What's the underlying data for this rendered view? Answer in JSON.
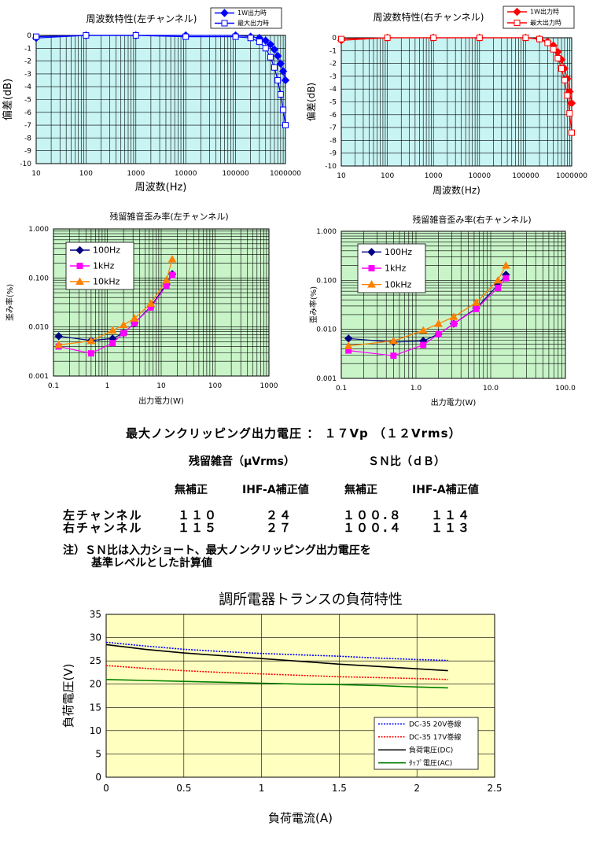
{
  "chart_data": [
    {
      "id": "freq_left",
      "type": "line",
      "title": "周波数特性(左チャンネル)",
      "xlabel": "周波数(Hz)",
      "ylabel": "偏差(dB)",
      "xscale": "log",
      "xlim": [
        10,
        1000000
      ],
      "ylim": [
        -10,
        0
      ],
      "xticks": [
        "10",
        "100",
        "1000",
        "10000",
        "100000",
        "1000000"
      ],
      "yticks": [
        "0",
        "-1",
        "-2",
        "-3",
        "-4",
        "-5",
        "-6",
        "-7",
        "-8",
        "-9",
        "-10"
      ],
      "grid": true,
      "legend": "top-right",
      "series": [
        {
          "name": "1W出力時",
          "color": "#0000ff",
          "marker": "diamond",
          "x": [
            10,
            100,
            1000,
            10000,
            100000,
            200000,
            300000,
            400000,
            500000,
            600000,
            700000,
            800000,
            900000,
            1000000
          ],
          "y": [
            -0.2,
            0,
            0,
            0,
            0,
            -0.1,
            -0.2,
            -0.4,
            -0.7,
            -1.1,
            -1.6,
            -2.2,
            -2.8,
            -3.5
          ]
        },
        {
          "name": "最大出力時",
          "color": "#0000ff",
          "marker": "square-open",
          "x": [
            10,
            100,
            1000,
            10000,
            100000,
            200000,
            300000,
            400000,
            500000,
            600000,
            700000,
            800000,
            900000,
            1000000
          ],
          "y": [
            -0.1,
            0,
            0,
            -0.1,
            -0.1,
            -0.2,
            -0.5,
            -1.0,
            -1.7,
            -2.5,
            -3.5,
            -4.6,
            -5.8,
            -7.0
          ]
        }
      ]
    },
    {
      "id": "freq_right",
      "type": "line",
      "title": "周波数特性(右チャンネル)",
      "xlabel": "周波数(Hz)",
      "ylabel": "偏差(dB)",
      "xscale": "log",
      "xlim": [
        10,
        1000000
      ],
      "ylim": [
        -10,
        0
      ],
      "xticks": [
        "10",
        "100",
        "1000",
        "10000",
        "100000",
        "1000000"
      ],
      "yticks": [
        "0",
        "-1",
        "-2",
        "-3",
        "-4",
        "-5",
        "-6",
        "-7",
        "-8",
        "-9",
        "-10"
      ],
      "grid": true,
      "legend": "top-right",
      "series": [
        {
          "name": "1W出力時",
          "color": "#ff0000",
          "marker": "diamond",
          "x": [
            10,
            100,
            1000,
            10000,
            100000,
            200000,
            300000,
            400000,
            500000,
            600000,
            700000,
            800000,
            900000,
            1000000
          ],
          "y": [
            -0.2,
            0,
            0,
            0,
            0,
            -0.1,
            -0.3,
            -0.6,
            -1.1,
            -1.7,
            -2.4,
            -3.2,
            -4.2,
            -5.1
          ]
        },
        {
          "name": "最大出力時",
          "color": "#ff0000",
          "marker": "square-open",
          "x": [
            10,
            100,
            1000,
            10000,
            100000,
            200000,
            300000,
            400000,
            500000,
            600000,
            700000,
            800000,
            900000,
            1000000
          ],
          "y": [
            -0.1,
            0,
            0,
            0,
            0,
            -0.1,
            -0.4,
            -0.9,
            -1.6,
            -2.4,
            -3.3,
            -4.5,
            -5.9,
            -7.4
          ]
        }
      ]
    },
    {
      "id": "thd_left",
      "type": "line",
      "title": "残留雑音歪み率(左チャンネル)",
      "xlabel": "出力電力(W)",
      "ylabel": "歪み率(%)",
      "xscale": "log",
      "yscale": "log",
      "xlim": [
        0.1,
        1000
      ],
      "ylim": [
        0.001,
        1
      ],
      "xticks": [
        "0.1",
        "1",
        "10",
        "100",
        "1000"
      ],
      "yticks": [
        "1.000",
        "0.100",
        "0.010",
        "0.001"
      ],
      "grid": true,
      "legend": "top-left",
      "series": [
        {
          "name": "100Hz",
          "color": "#000080",
          "marker": "diamond",
          "x": [
            0.125,
            0.5,
            1.25,
            2.0,
            3.2,
            6.4,
            12.5,
            16
          ],
          "y": [
            0.0065,
            0.0053,
            0.0058,
            0.0075,
            0.012,
            0.026,
            0.075,
            0.12
          ]
        },
        {
          "name": "1kHz",
          "color": "#ff00ff",
          "marker": "square",
          "x": [
            0.125,
            0.5,
            1.25,
            2.0,
            3.2,
            6.4,
            12.5,
            16
          ],
          "y": [
            0.004,
            0.0029,
            0.0047,
            0.0075,
            0.012,
            0.025,
            0.07,
            0.115
          ]
        },
        {
          "name": "10kHz",
          "color": "#ff8000",
          "marker": "triangle",
          "x": [
            0.125,
            0.5,
            1.25,
            2.0,
            3.2,
            6.4,
            12.5,
            16
          ],
          "y": [
            0.0043,
            0.0052,
            0.0085,
            0.011,
            0.015,
            0.03,
            0.09,
            0.24
          ]
        }
      ]
    },
    {
      "id": "thd_right",
      "type": "line",
      "title": "残留雑音歪み率(右チャンネル)",
      "xlabel": "出力電力(W)",
      "ylabel": "歪み率(%)",
      "xscale": "log",
      "yscale": "log",
      "xlim": [
        0.1,
        100
      ],
      "ylim": [
        0.001,
        1
      ],
      "xticks": [
        "0.1",
        "1.0",
        "10.0",
        "100.0"
      ],
      "yticks": [
        "1.000",
        "0.100",
        "0.010",
        "0.001"
      ],
      "grid": true,
      "legend": "top-left",
      "series": [
        {
          "name": "100Hz",
          "color": "#000080",
          "marker": "diamond",
          "x": [
            0.125,
            0.5,
            1.25,
            2.0,
            3.2,
            6.4,
            12.5,
            16
          ],
          "y": [
            0.0065,
            0.0055,
            0.0058,
            0.008,
            0.013,
            0.027,
            0.08,
            0.13
          ]
        },
        {
          "name": "1kHz",
          "color": "#ff00ff",
          "marker": "square",
          "x": [
            0.125,
            0.5,
            1.25,
            2.0,
            3.2,
            6.4,
            12.5,
            16
          ],
          "y": [
            0.0037,
            0.0029,
            0.0048,
            0.008,
            0.013,
            0.026,
            0.07,
            0.11
          ]
        },
        {
          "name": "10kHz",
          "color": "#ff8000",
          "marker": "triangle",
          "x": [
            0.125,
            0.5,
            1.25,
            2.0,
            3.2,
            6.4,
            12.5,
            16
          ],
          "y": [
            0.0046,
            0.0058,
            0.0095,
            0.013,
            0.018,
            0.035,
            0.1,
            0.2
          ]
        }
      ]
    },
    {
      "id": "load",
      "type": "line",
      "title": "調所電器トランスの負荷特性",
      "xlabel": "負荷電流(A)",
      "ylabel": "負荷電圧(V)",
      "xlim": [
        0,
        2.5
      ],
      "ylim": [
        0,
        35
      ],
      "xticks": [
        "0",
        "0.5",
        "1",
        "1.5",
        "2",
        "2.5"
      ],
      "yticks": [
        "0",
        "5",
        "10",
        "15",
        "20",
        "25",
        "30",
        "35"
      ],
      "grid": true,
      "legend": "bottom-right",
      "series": [
        {
          "name": "DC-35 20V巻線",
          "color": "#0000ff",
          "style": "dotted",
          "x": [
            0,
            0.25,
            0.5,
            0.75,
            1.0,
            1.25,
            1.5,
            1.75,
            2.0,
            2.2
          ],
          "y": [
            29,
            28.2,
            27.5,
            27,
            26.6,
            26.3,
            26,
            25.6,
            25.3,
            25.1
          ]
        },
        {
          "name": "DC-35 17V巻線",
          "color": "#ff0000",
          "style": "dotted",
          "x": [
            0,
            0.25,
            0.5,
            0.75,
            1.0,
            1.25,
            1.5,
            1.75,
            2.0,
            2.2
          ],
          "y": [
            24,
            23.4,
            22.9,
            22.5,
            22.2,
            21.9,
            21.6,
            21.4,
            21.2,
            21
          ]
        },
        {
          "name": "負荷電圧(DC)",
          "color": "#000000",
          "style": "solid",
          "x": [
            0,
            0.25,
            0.5,
            0.75,
            1.0,
            1.25,
            1.5,
            1.75,
            2.0,
            2.2
          ],
          "y": [
            28.5,
            27.5,
            26.7,
            26.1,
            25.5,
            24.9,
            24.3,
            23.8,
            23.3,
            22.9
          ]
        },
        {
          "name": "ﾀｯﾌﾟ電圧(AC)",
          "color": "#008000",
          "style": "solid",
          "x": [
            0,
            0.25,
            0.5,
            0.75,
            1.0,
            1.25,
            1.5,
            1.75,
            2.0,
            2.2
          ],
          "y": [
            21,
            20.8,
            20.6,
            20.4,
            20.2,
            20,
            19.9,
            19.7,
            19.4,
            19.2
          ]
        }
      ]
    }
  ],
  "spec": {
    "max_voltage": "最大ノンクリッピング出力電圧 ： １７Vp （１２Vrms）",
    "col_noise": "残留雑音（μVrms）",
    "col_sn": "ＳＮ比（ｄＢ）",
    "sub_1": "無補正",
    "sub_2": "IHF-A補正値",
    "sub_3": "無補正",
    "sub_4": "IHF-A補正値",
    "rows": [
      {
        "label": "左チャンネル",
        "v1": "１１０",
        "v2": "２４",
        "v3": "１００.８",
        "v4": "１１４"
      },
      {
        "label": "右チャンネル",
        "v1": "１１５",
        "v2": "２７",
        "v3": "１００.４",
        "v4": "１１３"
      }
    ],
    "note_1": "注）ＳＮ比は入力ショート、最大ノンクリッピング出力電圧を",
    "note_2": "基準レベルとした計算値"
  },
  "colors": {
    "freq_bg": "#c8f4f4",
    "thd_bg": "#c8f4c8",
    "load_bg": "#ffffc0"
  }
}
